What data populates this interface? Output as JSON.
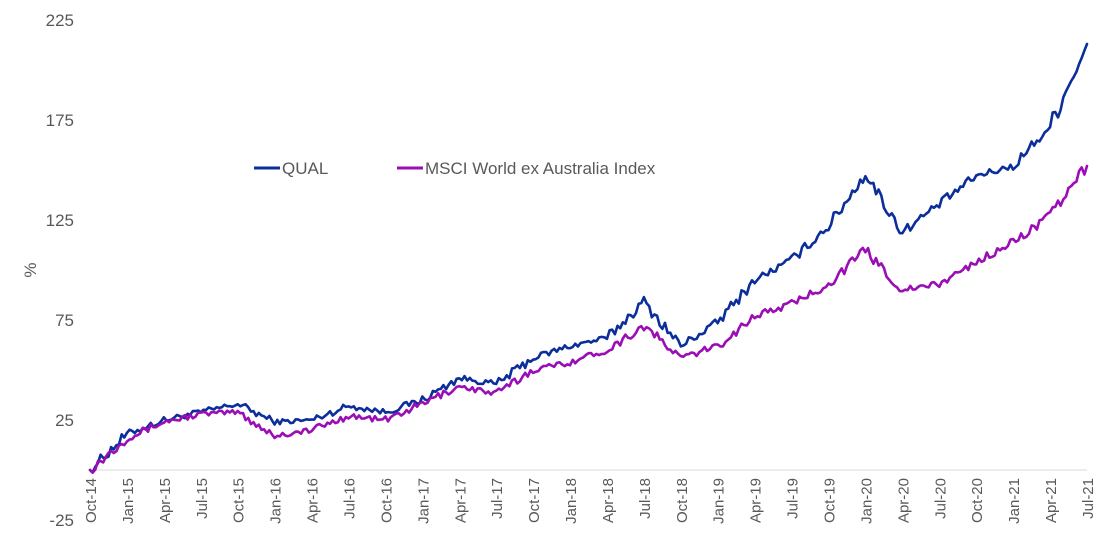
{
  "chart_data": {
    "type": "line",
    "title": "",
    "xlabel": "",
    "ylabel": "%",
    "ylim": [
      -25,
      225
    ],
    "yticks": [
      -25,
      25,
      75,
      125,
      175,
      225
    ],
    "x": [
      "Oct-14",
      "Jan-15",
      "Apr-15",
      "Jul-15",
      "Oct-15",
      "Jan-16",
      "Apr-16",
      "Jul-16",
      "Oct-16",
      "Jan-17",
      "Apr-17",
      "Jul-17",
      "Oct-17",
      "Jan-18",
      "Apr-18",
      "Jul-18",
      "Oct-18",
      "Jan-19",
      "Apr-19",
      "Jul-19",
      "Oct-19",
      "Jan-20",
      "Apr-20",
      "Jul-20",
      "Oct-20",
      "Jan-21",
      "Apr-21",
      "Jul-21"
    ],
    "grid": false,
    "legend_position": "top-left",
    "series": [
      {
        "name": "QUAL",
        "color": "#0B2E9A",
        "values": [
          0,
          18,
          25,
          29,
          33,
          24,
          25,
          32,
          29,
          35,
          46,
          43,
          56,
          62,
          66,
          84,
          62,
          74,
          95,
          105,
          122,
          148,
          119,
          133,
          147,
          152,
          172,
          213
        ]
      },
      {
        "name": "MSCI World ex Australia Index",
        "color": "#9B0DB5",
        "values": [
          0,
          16,
          24,
          28,
          29,
          17,
          20,
          27,
          25,
          33,
          42,
          38,
          50,
          54,
          60,
          72,
          56,
          62,
          77,
          83,
          93,
          110,
          90,
          93,
          104,
          114,
          127,
          152
        ]
      }
    ]
  }
}
